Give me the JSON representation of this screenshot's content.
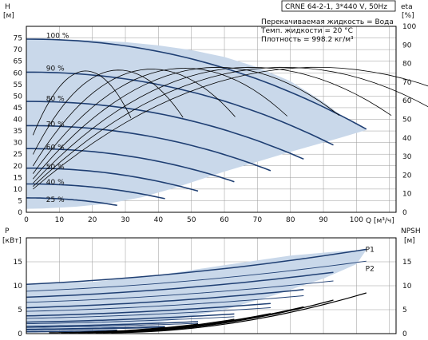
{
  "chart_data": [
    {
      "type": "line",
      "title": "CRNE 64-2-1, 3*440 V, 50Hz",
      "info_lines": [
        "Перекачиваемая жидкость = Вода",
        "Темп. жидкости = 20 °C",
        "Плотность = 998.2 кг/м³"
      ],
      "ylabel": "H",
      "yunit": "[м]",
      "y2label": "eta",
      "y2unit": "[%]",
      "xlabel_unit": "Q [м³/ч]",
      "xlim": [
        0,
        112
      ],
      "ylim": [
        0,
        80
      ],
      "y2lim": [
        0,
        100
      ],
      "xticks": [
        0,
        10,
        20,
        30,
        40,
        50,
        60,
        70,
        80,
        90,
        100
      ],
      "yticks": [
        0,
        5,
        10,
        15,
        20,
        25,
        30,
        35,
        40,
        45,
        50,
        55,
        60,
        65,
        70,
        75
      ],
      "y2ticks": [
        0,
        10,
        20,
        30,
        40,
        50,
        60,
        70,
        80,
        90,
        100
      ],
      "grid": true,
      "colors": {
        "curve": "#1f3f73",
        "envelope": "#c9d8ea",
        "eff": "#000000"
      },
      "envelope": {
        "top": [
          [
            0,
            74.5
          ],
          [
            10,
            74.4
          ],
          [
            20,
            74
          ],
          [
            30,
            73.2
          ],
          [
            40,
            71.8
          ],
          [
            50,
            69.8
          ],
          [
            60,
            66.8
          ],
          [
            70,
            62.4
          ],
          [
            80,
            56.4
          ],
          [
            90,
            47.5
          ],
          [
            96,
            41
          ],
          [
            103,
            35.4
          ]
        ],
        "bottom": [
          [
            103,
            35.4
          ],
          [
            95,
            32
          ],
          [
            80,
            26
          ],
          [
            60,
            17.5
          ],
          [
            45,
            10.5
          ],
          [
            35,
            6.5
          ],
          [
            25,
            3.8
          ],
          [
            15,
            2.4
          ],
          [
            5,
            1.6
          ],
          [
            0,
            1.5
          ]
        ]
      },
      "speed_labels": [
        {
          "text": "100 %",
          "x": 6,
          "y": 76
        },
        {
          "text": "90 %",
          "x": 6,
          "y": 62
        },
        {
          "text": "80 %",
          "x": 6,
          "y": 49
        },
        {
          "text": "70 %",
          "x": 6,
          "y": 38
        },
        {
          "text": "60 %",
          "x": 6,
          "y": 28
        },
        {
          "text": "50 %",
          "x": 6,
          "y": 19.5
        },
        {
          "text": "40 %",
          "x": 6,
          "y": 13
        },
        {
          "text": "25 %",
          "x": 6,
          "y": 5.5
        }
      ],
      "series": [
        {
          "H0": 74.5,
          "qmax": 103
        },
        {
          "H0": 60.3,
          "qmax": 93
        },
        {
          "H0": 47.7,
          "qmax": 84
        },
        {
          "H0": 37.3,
          "qmax": 74
        },
        {
          "H0": 27.4,
          "qmax": 63
        },
        {
          "H0": 19.0,
          "qmax": 52
        },
        {
          "H0": 12.2,
          "qmax": 42
        },
        {
          "H0": 6.2,
          "qmax": 27.5
        }
      ],
      "efficiency_peaks": [
        {
          "q": 18,
          "eta": 76
        },
        {
          "q": 28,
          "eta": 76.5
        },
        {
          "q": 38,
          "eta": 77
        },
        {
          "q": 48,
          "eta": 77.5
        },
        {
          "q": 58,
          "eta": 78
        },
        {
          "q": 68,
          "eta": 78
        },
        {
          "q": 78,
          "eta": 78
        },
        {
          "q": 88,
          "eta": 78
        }
      ]
    },
    {
      "type": "line",
      "ylabel": "P",
      "yunit": "[кВт]",
      "y2label": "NPSH",
      "y2unit": "[м]",
      "xlim": [
        0,
        112
      ],
      "ylim": [
        0,
        20
      ],
      "y2lim": [
        0,
        20
      ],
      "yticks": [
        0,
        5,
        10,
        15
      ],
      "y2ticks": [
        0,
        5,
        10,
        15
      ],
      "grid": true,
      "power_labels": [
        {
          "text": "P1",
          "x": 102,
          "y": 17.6
        },
        {
          "text": "P2",
          "x": 102,
          "y": 13.6
        }
      ],
      "envelope": {
        "top": [
          [
            0,
            10.3
          ],
          [
            20,
            10.8
          ],
          [
            40,
            12.2
          ],
          [
            60,
            14.3
          ],
          [
            80,
            16.3
          ],
          [
            95,
            17.2
          ],
          [
            103,
            17.5
          ]
        ],
        "bottom": [
          [
            103,
            17.5
          ],
          [
            100,
            14.5
          ],
          [
            90,
            11.5
          ],
          [
            75,
            8
          ],
          [
            60,
            5
          ],
          [
            40,
            2.3
          ],
          [
            20,
            0.9
          ],
          [
            0,
            0.5
          ]
        ]
      },
      "p1_curves": [
        {
          "p0": 10.3,
          "p1": 17.6,
          "qmax": 103
        },
        {
          "p0": 7.6,
          "p1": 12.8,
          "qmax": 93
        },
        {
          "p0": 5.4,
          "p1": 9.2,
          "qmax": 84
        },
        {
          "p0": 3.7,
          "p1": 6.3,
          "qmax": 74
        },
        {
          "p0": 2.4,
          "p1": 4.1,
          "qmax": 63
        },
        {
          "p0": 1.5,
          "p1": 2.5,
          "qmax": 52
        },
        {
          "p0": 0.9,
          "p1": 1.5,
          "qmax": 42
        },
        {
          "p0": 0.4,
          "p1": 0.7,
          "qmax": 27.5
        }
      ],
      "npsh_curves": [
        {
          "qmax": 103,
          "top": 8.5
        },
        {
          "qmax": 93,
          "top": 7.0
        },
        {
          "qmax": 84,
          "top": 5.6
        },
        {
          "qmax": 74,
          "top": 4.2
        },
        {
          "qmax": 63,
          "top": 3.0
        },
        {
          "qmax": 52,
          "top": 2.0
        },
        {
          "qmax": 42,
          "top": 1.3
        },
        {
          "qmax": 27.5,
          "top": 0.6
        }
      ]
    }
  ]
}
